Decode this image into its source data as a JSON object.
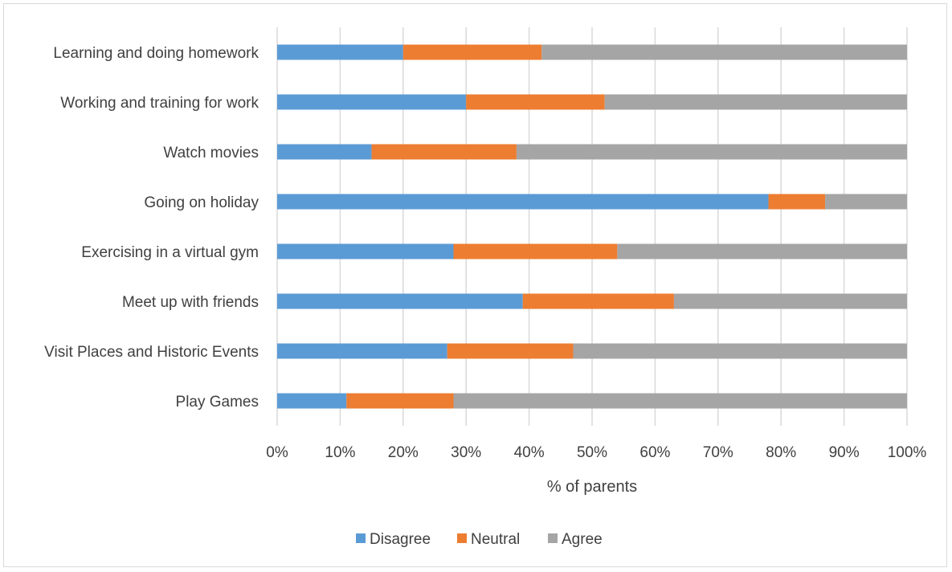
{
  "chart_data": {
    "type": "bar",
    "orientation": "horizontal",
    "stacked": "percent",
    "title": "",
    "xlabel": "% of parents",
    "ylabel": "",
    "xlim": [
      0,
      100
    ],
    "x_ticks": [
      "0%",
      "10%",
      "20%",
      "30%",
      "40%",
      "50%",
      "60%",
      "70%",
      "80%",
      "90%",
      "100%"
    ],
    "grid": "vertical",
    "legend_position": "bottom",
    "categories": [
      "Learning and doing homework",
      "Working and training for work",
      "Watch movies",
      "Going on holiday",
      "Exercising in a virtual gym",
      "Meet up with friends",
      "Visit Places and Historic Events",
      "Play Games"
    ],
    "series": [
      {
        "name": "Disagree",
        "color": "#5b9bd5",
        "values": [
          20,
          30,
          15,
          78,
          28,
          39,
          27,
          11
        ]
      },
      {
        "name": "Neutral",
        "color": "#ed7d31",
        "values": [
          22,
          22,
          23,
          9,
          26,
          24,
          20,
          17
        ]
      },
      {
        "name": "Agree",
        "color": "#a5a5a5",
        "values": [
          58,
          48,
          62,
          13,
          46,
          37,
          53,
          72
        ]
      }
    ]
  }
}
